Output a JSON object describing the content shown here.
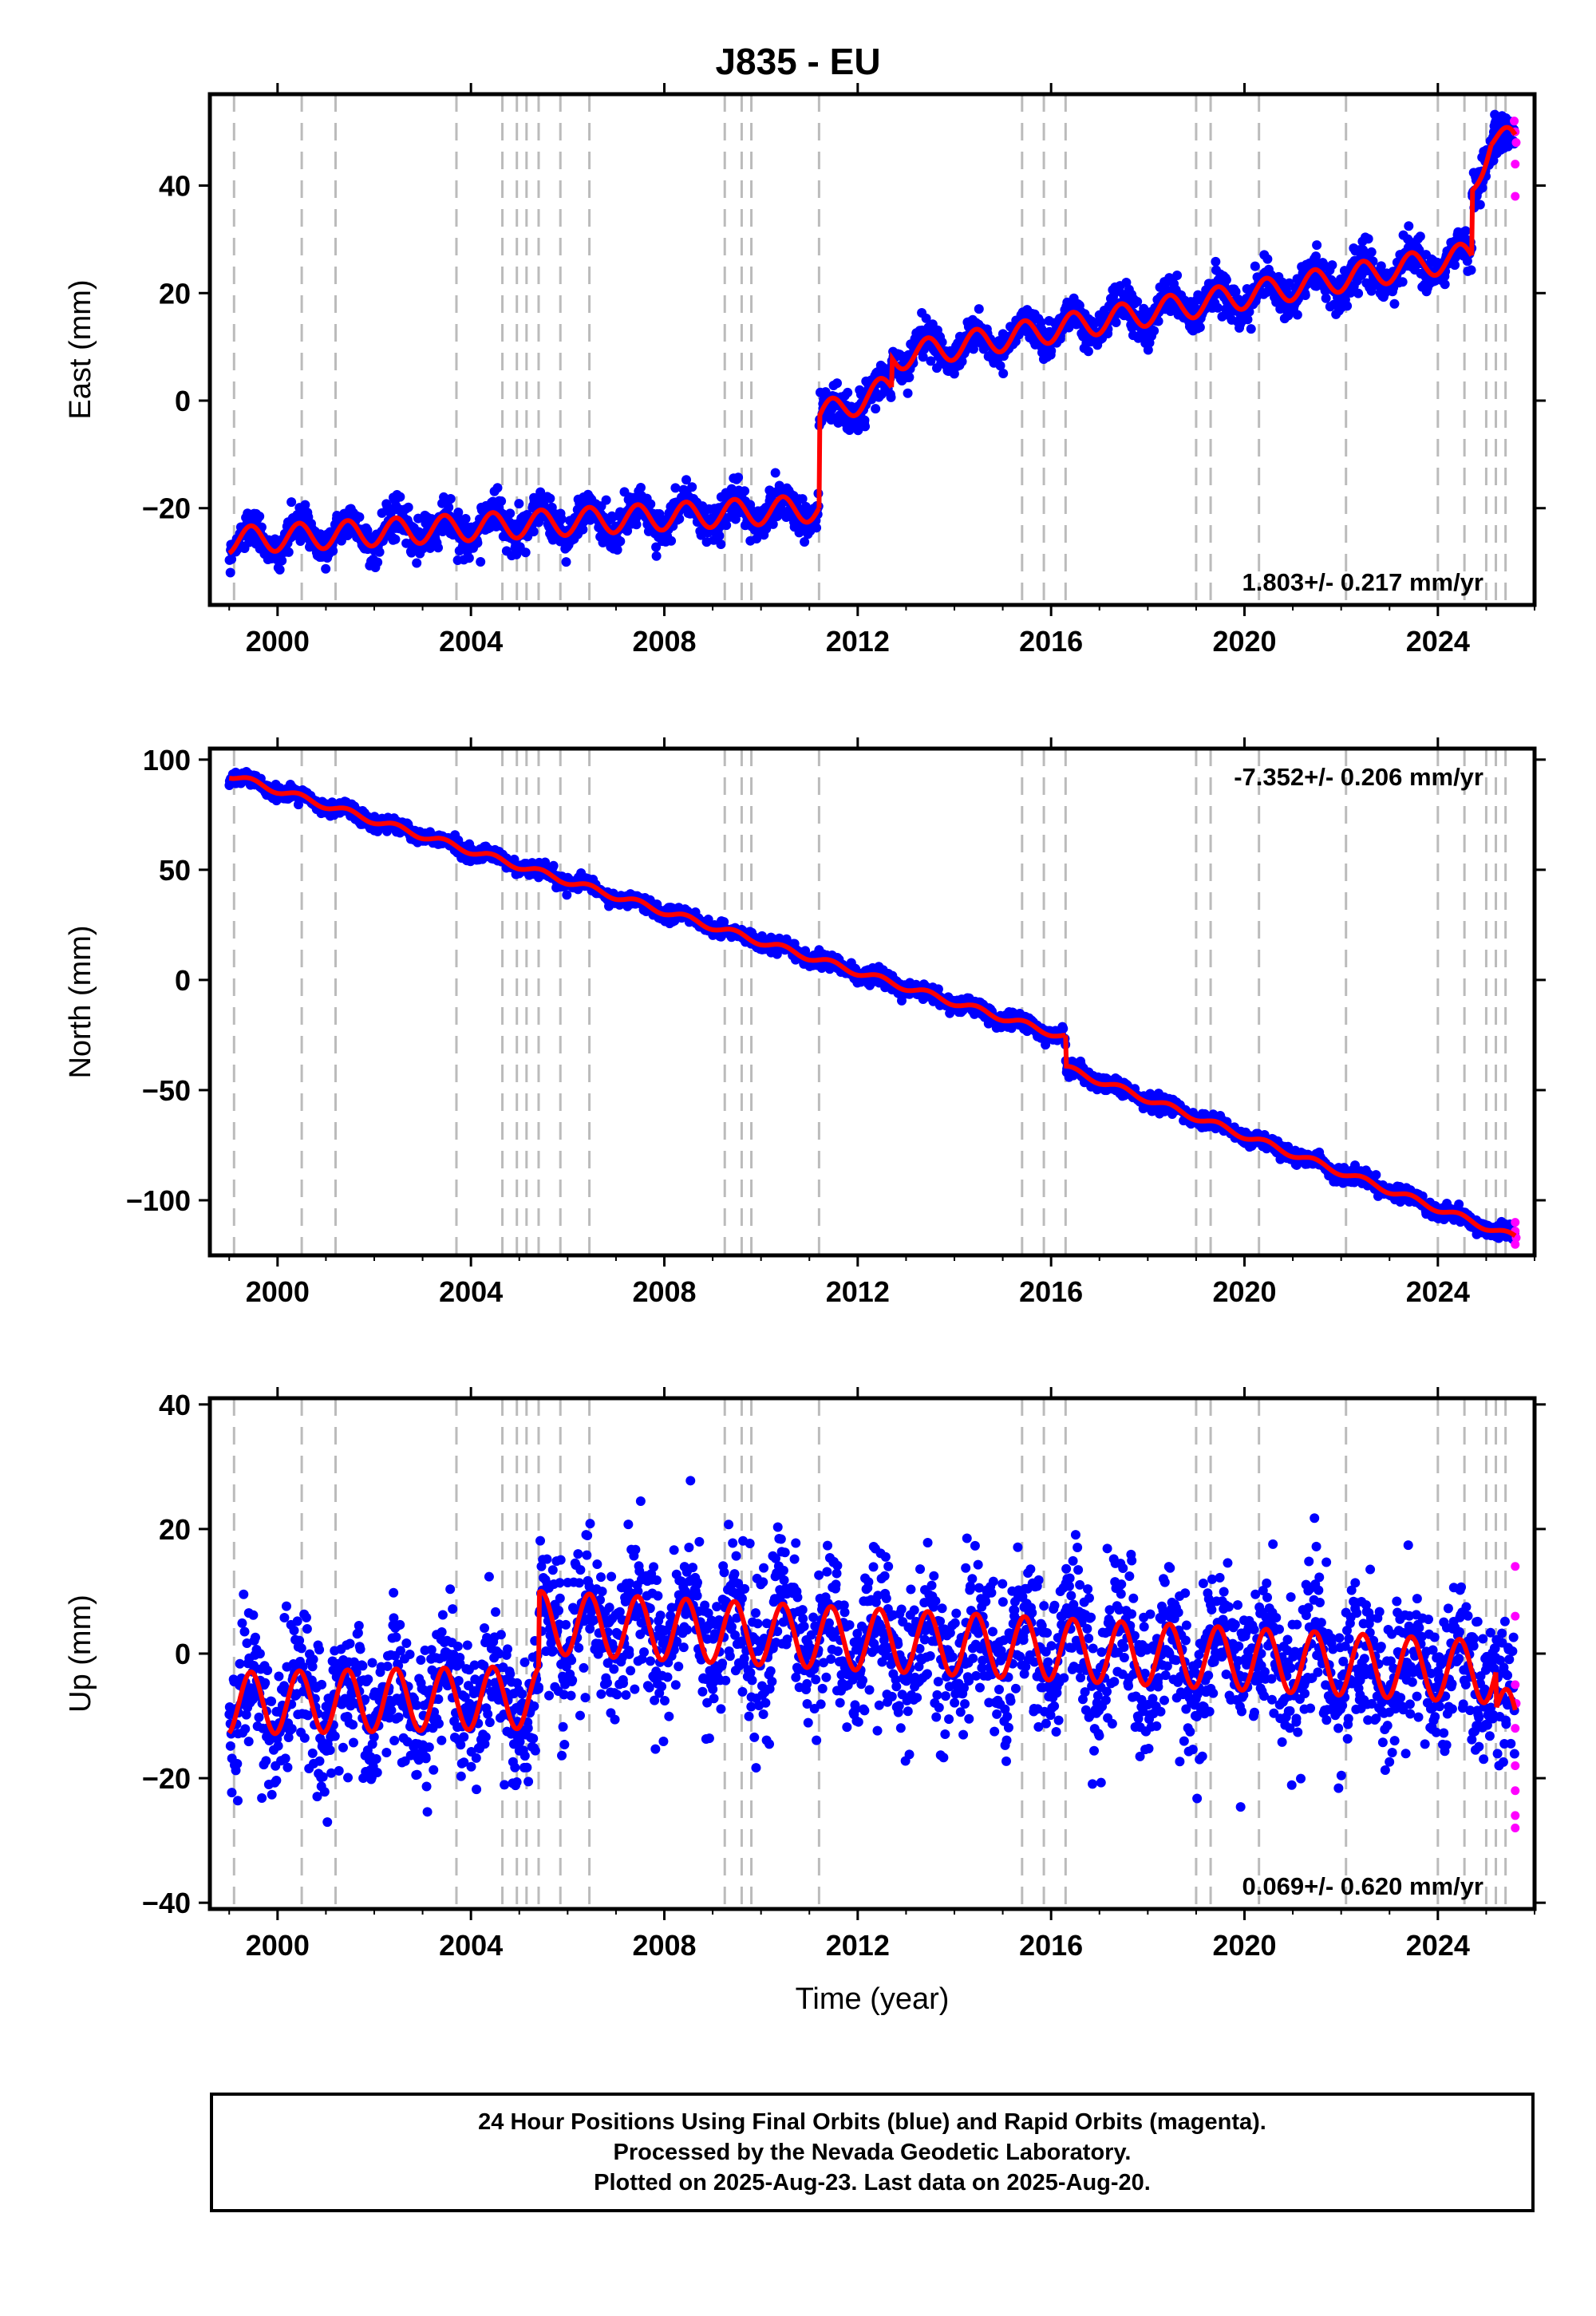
{
  "title": "J835 - EU",
  "caption": {
    "line1": "24 Hour Positions Using Final Orbits (blue) and Rapid Orbits (magenta).",
    "line2": "Processed by the Nevada Geodetic Laboratory.",
    "line3": "Plotted on 2025-Aug-23. Last data on 2025-Aug-20."
  },
  "colors": {
    "final": "#0000ff",
    "rapid": "#ff00ff",
    "model": "#ff0000",
    "steps": "#bbbbbb"
  },
  "chart_data": [
    {
      "type": "scatter",
      "component": "east",
      "title": "J835 - EU",
      "xlabel": "",
      "ylabel": "East (mm)",
      "xlim": [
        1998.6,
        2026.0
      ],
      "ylim": [
        -38,
        57
      ],
      "xticks": [
        2000,
        2004,
        2008,
        2012,
        2016,
        2020,
        2024
      ],
      "yticks": [
        -20,
        0,
        20,
        40
      ],
      "rate_label": "1.803+/- 0.217 mm/yr",
      "rate_position": "bottom-right",
      "seasonal_amplitude": 2.5,
      "scatter_sd": 1.8,
      "model_segments": [
        {
          "t": [
            1999.0,
            2011.2
          ],
          "y": [
            -26,
            -20
          ]
        },
        {
          "t": [
            2011.2,
            2012.7
          ],
          "y": [
            -3,
            2.5
          ]
        },
        {
          "t": [
            2012.7,
            2024.7
          ],
          "y": [
            8,
            27
          ]
        },
        {
          "t": [
            2024.7,
            2025.1
          ],
          "y": [
            39,
            49
          ]
        },
        {
          "t": [
            2025.1,
            2025.6
          ],
          "y": [
            49,
            48
          ]
        }
      ],
      "rapid_points": [
        {
          "t": 2025.58,
          "y": 52
        },
        {
          "t": 2025.6,
          "y": 50
        },
        {
          "t": 2025.62,
          "y": 48
        },
        {
          "t": 2025.6,
          "y": 44
        },
        {
          "t": 2025.6,
          "y": 38
        }
      ]
    },
    {
      "type": "scatter",
      "component": "north",
      "xlabel": "",
      "ylabel": "North (mm)",
      "xlim": [
        1998.6,
        2026.0
      ],
      "ylim": [
        -125,
        105
      ],
      "xticks": [
        2000,
        2004,
        2008,
        2012,
        2016,
        2020,
        2024
      ],
      "yticks": [
        -100,
        -50,
        0,
        50,
        100
      ],
      "rate_label": "-7.352+/- 0.206 mm/yr",
      "rate_position": "top-right",
      "seasonal_amplitude": 1.5,
      "scatter_sd": 1.6,
      "model_segments": [
        {
          "t": [
            1999.0,
            2016.3
          ],
          "y": [
            93,
            -26
          ]
        },
        {
          "t": [
            2016.3,
            2025.6
          ],
          "y": [
            -40,
            -117
          ]
        }
      ],
      "rapid_points": [
        {
          "t": 2025.6,
          "y": -110
        },
        {
          "t": 2025.6,
          "y": -114
        },
        {
          "t": 2025.62,
          "y": -117
        },
        {
          "t": 2025.6,
          "y": -120
        }
      ]
    },
    {
      "type": "scatter",
      "component": "up",
      "xlabel": "Time (year)",
      "ylabel": "Up (mm)",
      "xlim": [
        1998.6,
        2026.0
      ],
      "ylim": [
        -41,
        41
      ],
      "xticks": [
        2000,
        2004,
        2008,
        2012,
        2016,
        2020,
        2024
      ],
      "yticks": [
        -40,
        -20,
        0,
        20,
        40
      ],
      "rate_label": "0.069+/- 0.620 mm/yr",
      "rate_position": "bottom-right",
      "seasonal_amplitude": 5,
      "scatter_sd": 6,
      "model_segments": [
        {
          "t": [
            1999.0,
            2005.4
          ],
          "y": [
            -8,
            -7
          ]
        },
        {
          "t": [
            2005.4,
            2025.2
          ],
          "y": [
            5,
            -3
          ]
        },
        {
          "t": [
            2025.2,
            2025.6
          ],
          "y": [
            -9,
            -12
          ]
        }
      ],
      "rapid_points": [
        {
          "t": 2025.6,
          "y": 14
        },
        {
          "t": 2025.6,
          "y": 6
        },
        {
          "t": 2025.6,
          "y": -5
        },
        {
          "t": 2025.62,
          "y": -8
        },
        {
          "t": 2025.6,
          "y": -12
        },
        {
          "t": 2025.6,
          "y": -18
        },
        {
          "t": 2025.6,
          "y": -22
        },
        {
          "t": 2025.6,
          "y": -26
        },
        {
          "t": 2025.6,
          "y": -28
        }
      ]
    }
  ],
  "step_epochs": [
    1999.1,
    2000.5,
    2001.2,
    2003.7,
    2004.65,
    2004.95,
    2005.15,
    2005.4,
    2005.85,
    2006.45,
    2009.25,
    2009.6,
    2009.8,
    2011.2,
    2015.4,
    2015.85,
    2016.3,
    2019.0,
    2019.3,
    2020.3,
    2022.1,
    2024.0,
    2024.55,
    2025.0,
    2025.2,
    2025.4
  ]
}
